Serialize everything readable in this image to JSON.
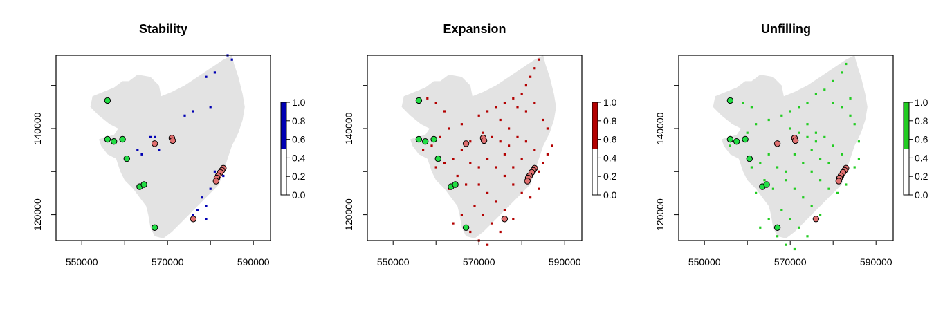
{
  "panels": [
    {
      "title": "Stability",
      "color": "#0000b3",
      "legend_ticks": [
        "0.0",
        "0.2",
        "0.4",
        "0.6",
        "0.8",
        "1.0"
      ],
      "legend_colored_above": 0.5,
      "pixels": [
        [
          584,
          157
        ],
        [
          585,
          156
        ],
        [
          579,
          152
        ],
        [
          581,
          153
        ],
        [
          574,
          143
        ],
        [
          576,
          144
        ],
        [
          580,
          145
        ],
        [
          566,
          138
        ],
        [
          567,
          138
        ],
        [
          563,
          135
        ],
        [
          568,
          135
        ],
        [
          564,
          134
        ],
        [
          581,
          130
        ],
        [
          582,
          130
        ],
        [
          581,
          128
        ],
        [
          583,
          129
        ],
        [
          580,
          126
        ],
        [
          578,
          124
        ],
        [
          579,
          122
        ],
        [
          577,
          121
        ],
        [
          576,
          120
        ],
        [
          579,
          119
        ]
      ]
    },
    {
      "title": "Expansion",
      "color": "#b30000",
      "legend_ticks": [
        "0.0",
        "0.2",
        "0.4",
        "0.6",
        "0.8",
        "1.0"
      ],
      "legend_colored_above": 0.5,
      "pixels": [
        [
          584,
          156
        ],
        [
          583,
          154
        ],
        [
          582,
          152
        ],
        [
          581,
          150
        ],
        [
          580,
          148
        ],
        [
          578,
          147
        ],
        [
          576,
          146
        ],
        [
          574,
          145
        ],
        [
          572,
          144
        ],
        [
          570,
          143
        ],
        [
          579,
          145
        ],
        [
          581,
          144
        ],
        [
          583,
          146
        ],
        [
          575,
          142
        ],
        [
          577,
          140
        ],
        [
          579,
          138
        ],
        [
          581,
          137
        ],
        [
          583,
          135
        ],
        [
          571,
          139
        ],
        [
          573,
          138
        ],
        [
          575,
          137
        ],
        [
          577,
          136
        ],
        [
          566,
          141
        ],
        [
          563,
          140
        ],
        [
          561,
          138
        ],
        [
          559,
          136
        ],
        [
          557,
          135
        ],
        [
          568,
          137
        ],
        [
          566,
          135
        ],
        [
          564,
          133
        ],
        [
          562,
          132
        ],
        [
          560,
          131
        ],
        [
          572,
          133
        ],
        [
          574,
          131
        ],
        [
          576,
          129
        ],
        [
          578,
          127
        ],
        [
          580,
          125
        ],
        [
          582,
          124
        ],
        [
          584,
          126
        ],
        [
          570,
          127
        ],
        [
          572,
          125
        ],
        [
          574,
          123
        ],
        [
          576,
          121
        ],
        [
          578,
          119
        ],
        [
          569,
          122
        ],
        [
          571,
          120
        ],
        [
          573,
          118
        ],
        [
          575,
          116
        ],
        [
          568,
          116
        ],
        [
          570,
          114
        ],
        [
          572,
          113
        ],
        [
          565,
          129
        ],
        [
          567,
          127
        ],
        [
          563,
          126
        ],
        [
          584,
          130
        ],
        [
          585,
          132
        ],
        [
          586,
          134
        ],
        [
          587,
          136
        ],
        [
          586,
          140
        ],
        [
          585,
          142
        ],
        [
          562,
          144
        ],
        [
          560,
          146
        ],
        [
          558,
          147
        ],
        [
          568,
          132
        ],
        [
          570,
          131
        ],
        [
          566,
          120
        ],
        [
          564,
          118
        ],
        [
          580,
          133
        ],
        [
          578,
          131
        ],
        [
          576,
          134
        ]
      ]
    },
    {
      "title": "Unfilling",
      "color": "#22cc22",
      "legend_ticks": [
        "0.0",
        "0.2",
        "0.4",
        "0.6",
        "0.8",
        "1.0"
      ],
      "legend_colored_above": 0.5,
      "pixels": [
        [
          583,
          155
        ],
        [
          582,
          153
        ],
        [
          580,
          151
        ],
        [
          578,
          149
        ],
        [
          576,
          148
        ],
        [
          574,
          146
        ],
        [
          572,
          145
        ],
        [
          570,
          144
        ],
        [
          568,
          143
        ],
        [
          580,
          146
        ],
        [
          582,
          145
        ],
        [
          584,
          147
        ],
        [
          574,
          141
        ],
        [
          576,
          139
        ],
        [
          578,
          138
        ],
        [
          580,
          136
        ],
        [
          582,
          134
        ],
        [
          570,
          140
        ],
        [
          572,
          139
        ],
        [
          574,
          138
        ],
        [
          576,
          137
        ],
        [
          565,
          142
        ],
        [
          562,
          141
        ],
        [
          560,
          139
        ],
        [
          558,
          137
        ],
        [
          556,
          136
        ],
        [
          567,
          136
        ],
        [
          565,
          134
        ],
        [
          563,
          132
        ],
        [
          561,
          131
        ],
        [
          571,
          134
        ],
        [
          573,
          132
        ],
        [
          575,
          130
        ],
        [
          577,
          128
        ],
        [
          579,
          126
        ],
        [
          581,
          125
        ],
        [
          583,
          127
        ],
        [
          569,
          128
        ],
        [
          571,
          126
        ],
        [
          573,
          124
        ],
        [
          575,
          122
        ],
        [
          577,
          120
        ],
        [
          568,
          121
        ],
        [
          570,
          119
        ],
        [
          572,
          117
        ],
        [
          574,
          115
        ],
        [
          567,
          115
        ],
        [
          569,
          113
        ],
        [
          571,
          112
        ],
        [
          564,
          128
        ],
        [
          566,
          126
        ],
        [
          562,
          125
        ],
        [
          585,
          131
        ],
        [
          586,
          133
        ],
        [
          586,
          137
        ],
        [
          585,
          141
        ],
        [
          584,
          143
        ],
        [
          561,
          145
        ],
        [
          559,
          146
        ],
        [
          567,
          131
        ],
        [
          569,
          130
        ],
        [
          565,
          119
        ],
        [
          563,
          117
        ],
        [
          579,
          132
        ],
        [
          577,
          133
        ],
        [
          575,
          135
        ]
      ]
    }
  ],
  "x_ticks": [
    "550000",
    "570000",
    "590000"
  ],
  "y_ticks": [
    "120000",
    "140000"
  ],
  "extent": {
    "xlim": [
      544000,
      594000
    ],
    "ylim": [
      114000,
      157000
    ]
  },
  "region_color": "#e3e3e3",
  "region_outline": [
    [
      561,
      151
    ],
    [
      563,
      152.5
    ],
    [
      566,
      152
    ],
    [
      568,
      150
    ],
    [
      568.5,
      147.5
    ],
    [
      571,
      148.5
    ],
    [
      574,
      150
    ],
    [
      577,
      152
    ],
    [
      580,
      154
    ],
    [
      583,
      156
    ],
    [
      585,
      157
    ],
    [
      585.5,
      155
    ],
    [
      586.5,
      152
    ],
    [
      587.5,
      148
    ],
    [
      588,
      145
    ],
    [
      587.5,
      142
    ],
    [
      586.5,
      139
    ],
    [
      585,
      136
    ],
    [
      584,
      133
    ],
    [
      583,
      130
    ],
    [
      582,
      127
    ],
    [
      580,
      125
    ],
    [
      578,
      123
    ],
    [
      576,
      121
    ],
    [
      574.5,
      119.5
    ],
    [
      573,
      118
    ],
    [
      571,
      116
    ],
    [
      569,
      114.5
    ],
    [
      567,
      115
    ],
    [
      566,
      117
    ],
    [
      565.5,
      120
    ],
    [
      565,
      122
    ],
    [
      563.5,
      124
    ],
    [
      562,
      126
    ],
    [
      560,
      128
    ],
    [
      559,
      130
    ],
    [
      558,
      133
    ],
    [
      556,
      134
    ],
    [
      554.5,
      136
    ],
    [
      554,
      137.5
    ],
    [
      555.5,
      138
    ],
    [
      557.5,
      138.5
    ],
    [
      558.5,
      140
    ],
    [
      556.5,
      141
    ],
    [
      554,
      143
    ],
    [
      552,
      145
    ],
    [
      552.5,
      147.5
    ],
    [
      555,
      148.5
    ],
    [
      557.5,
      149.5
    ],
    [
      559.5,
      151
    ]
  ],
  "points_green_color": "#22dd44",
  "points_red_color": "#e07070",
  "points_green": [
    [
      556,
      146.5
    ],
    [
      556,
      137.5
    ],
    [
      557.5,
      137
    ],
    [
      559.5,
      137.5
    ],
    [
      560.5,
      133
    ],
    [
      563.5,
      126.5
    ],
    [
      564.5,
      127
    ],
    [
      567,
      117
    ]
  ],
  "points_red": [
    [
      567,
      136.5
    ],
    [
      571,
      137.8
    ],
    [
      571.2,
      137.2
    ],
    [
      583,
      130.8
    ],
    [
      582.7,
      130.3
    ],
    [
      582.3,
      129.8
    ],
    [
      581.8,
      129
    ],
    [
      581.5,
      128.5
    ],
    [
      581.3,
      127.8
    ],
    [
      576,
      119
    ]
  ]
}
